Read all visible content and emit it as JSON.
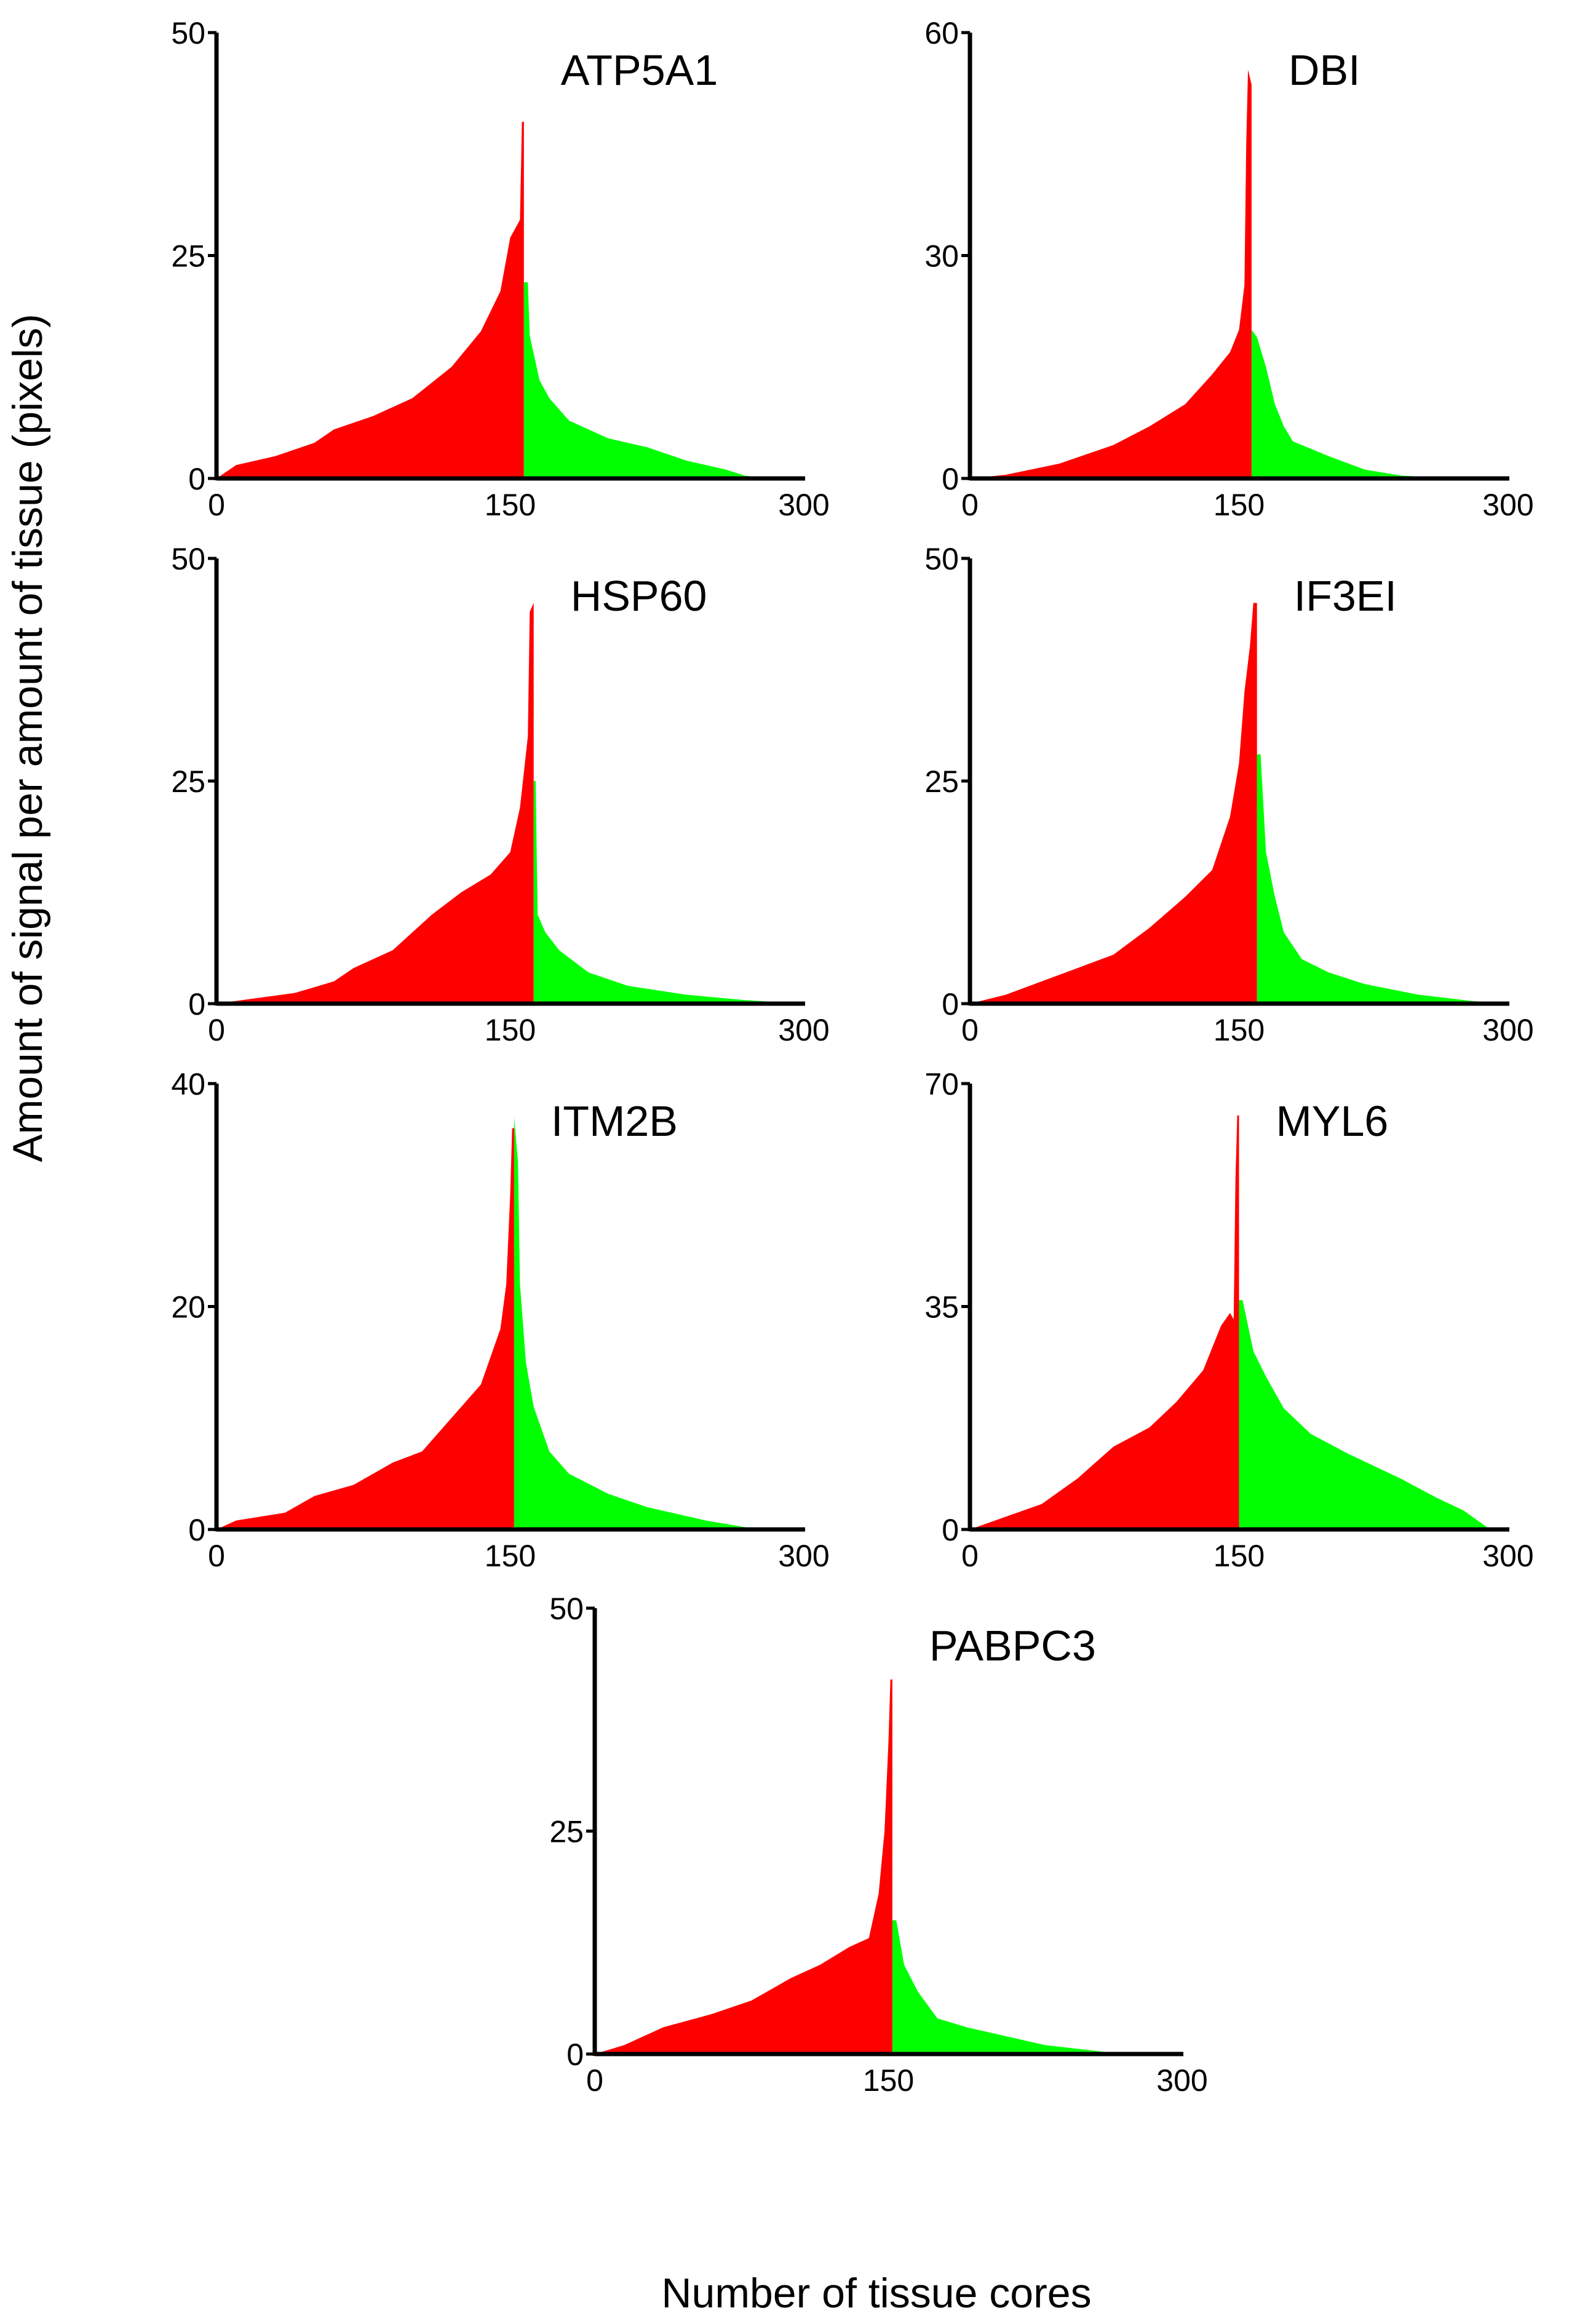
{
  "figure": {
    "ylabel": "Amount of signal per amount of tissue (pixels)",
    "xlabel": "Number of tissue cores"
  },
  "colors": {
    "left": "#ff0000",
    "right": "#00ff00",
    "axis": "#000000"
  },
  "chart_data": [
    {
      "type": "area",
      "title": "ATP5A1",
      "xlim": [
        0,
        300
      ],
      "ylim": [
        0,
        50
      ],
      "xticks": [
        "0",
        "150",
        "300"
      ],
      "yticks": [
        "0",
        "25",
        "50"
      ],
      "split": 157,
      "left_series": [
        [
          0,
          0
        ],
        [
          10,
          1.5
        ],
        [
          30,
          2.5
        ],
        [
          50,
          4
        ],
        [
          60,
          5.5
        ],
        [
          80,
          7
        ],
        [
          100,
          9
        ],
        [
          120,
          12.5
        ],
        [
          135,
          16.5
        ],
        [
          145,
          21
        ],
        [
          150,
          27
        ],
        [
          155,
          29
        ],
        [
          156,
          40
        ],
        [
          157,
          40
        ]
      ],
      "right_series": [
        [
          157,
          22
        ],
        [
          159,
          22
        ],
        [
          160,
          16
        ],
        [
          165,
          11
        ],
        [
          170,
          9
        ],
        [
          180,
          6.5
        ],
        [
          200,
          4.5
        ],
        [
          220,
          3.5
        ],
        [
          240,
          2
        ],
        [
          260,
          1
        ],
        [
          270,
          0.3
        ],
        [
          285,
          0
        ]
      ]
    },
    {
      "type": "area",
      "title": "DBI",
      "xlim": [
        0,
        300
      ],
      "ylim": [
        0,
        60
      ],
      "xticks": [
        "0",
        "150",
        "300"
      ],
      "yticks": [
        "0",
        "30",
        "60"
      ],
      "split": 157,
      "left_series": [
        [
          0,
          0
        ],
        [
          20,
          0.5
        ],
        [
          50,
          2
        ],
        [
          80,
          4.5
        ],
        [
          100,
          7
        ],
        [
          120,
          10
        ],
        [
          135,
          14
        ],
        [
          145,
          17
        ],
        [
          150,
          20
        ],
        [
          153,
          26
        ],
        [
          154,
          45
        ],
        [
          155,
          55
        ],
        [
          157,
          53
        ]
      ],
      "right_series": [
        [
          157,
          20
        ],
        [
          160,
          19
        ],
        [
          165,
          15
        ],
        [
          170,
          10
        ],
        [
          175,
          7
        ],
        [
          180,
          5
        ],
        [
          200,
          3
        ],
        [
          220,
          1.2
        ],
        [
          240,
          0.4
        ],
        [
          260,
          0.1
        ],
        [
          275,
          0
        ]
      ]
    },
    {
      "type": "area",
      "title": "HSP60",
      "xlim": [
        0,
        300
      ],
      "ylim": [
        0,
        50
      ],
      "xticks": [
        "0",
        "150",
        "300"
      ],
      "yticks": [
        "0",
        "25",
        "50"
      ],
      "split": 162,
      "left_series": [
        [
          0,
          0
        ],
        [
          20,
          0.6
        ],
        [
          40,
          1.2
        ],
        [
          60,
          2.5
        ],
        [
          70,
          4
        ],
        [
          90,
          6
        ],
        [
          110,
          10
        ],
        [
          125,
          12.5
        ],
        [
          140,
          14.5
        ],
        [
          150,
          17
        ],
        [
          155,
          22
        ],
        [
          159,
          30
        ],
        [
          160,
          44
        ],
        [
          162,
          45
        ]
      ],
      "right_series": [
        [
          162,
          25
        ],
        [
          163,
          25
        ],
        [
          164,
          10
        ],
        [
          168,
          8
        ],
        [
          175,
          6
        ],
        [
          190,
          3.5
        ],
        [
          210,
          2
        ],
        [
          240,
          1
        ],
        [
          270,
          0.4
        ],
        [
          300,
          0
        ]
      ]
    },
    {
      "type": "area",
      "title": "IF3EI",
      "xlim": [
        0,
        300
      ],
      "ylim": [
        0,
        50
      ],
      "xticks": [
        "0",
        "150",
        "300"
      ],
      "yticks": [
        "0",
        "25",
        "50"
      ],
      "split": 160,
      "left_series": [
        [
          0,
          0
        ],
        [
          20,
          1
        ],
        [
          40,
          2.5
        ],
        [
          60,
          4
        ],
        [
          80,
          5.5
        ],
        [
          100,
          8.5
        ],
        [
          120,
          12
        ],
        [
          135,
          15
        ],
        [
          145,
          21
        ],
        [
          150,
          27
        ],
        [
          153,
          35
        ],
        [
          156,
          40
        ],
        [
          158,
          45
        ],
        [
          160,
          45
        ]
      ],
      "right_series": [
        [
          160,
          28
        ],
        [
          162,
          28
        ],
        [
          165,
          17
        ],
        [
          170,
          12
        ],
        [
          175,
          8
        ],
        [
          185,
          5
        ],
        [
          200,
          3.5
        ],
        [
          220,
          2.2
        ],
        [
          250,
          1
        ],
        [
          280,
          0.3
        ],
        [
          300,
          0
        ]
      ]
    },
    {
      "type": "area",
      "title": "ITM2B",
      "xlim": [
        0,
        300
      ],
      "ylim": [
        0,
        40
      ],
      "xticks": [
        "0",
        "150",
        "300"
      ],
      "yticks": [
        "0",
        "20",
        "40"
      ],
      "split": 152,
      "left_series": [
        [
          0,
          0
        ],
        [
          10,
          0.8
        ],
        [
          35,
          1.5
        ],
        [
          50,
          3
        ],
        [
          70,
          4
        ],
        [
          90,
          6
        ],
        [
          105,
          7
        ],
        [
          120,
          10
        ],
        [
          135,
          13
        ],
        [
          145,
          18
        ],
        [
          148,
          22
        ],
        [
          150,
          30
        ],
        [
          151,
          36
        ],
        [
          152,
          36
        ]
      ],
      "right_series": [
        [
          152,
          37
        ],
        [
          154,
          33
        ],
        [
          155,
          22
        ],
        [
          158,
          15
        ],
        [
          162,
          11
        ],
        [
          170,
          7
        ],
        [
          180,
          5
        ],
        [
          200,
          3.2
        ],
        [
          220,
          2
        ],
        [
          250,
          0.8
        ],
        [
          270,
          0.2
        ],
        [
          285,
          0
        ]
      ]
    },
    {
      "type": "area",
      "title": "MYL6",
      "xlim": [
        0,
        300
      ],
      "ylim": [
        0,
        70
      ],
      "xticks": [
        "0",
        "150",
        "300"
      ],
      "yticks": [
        "0",
        "35",
        "70"
      ],
      "split": 150,
      "left_series": [
        [
          0,
          0
        ],
        [
          20,
          2
        ],
        [
          40,
          4
        ],
        [
          60,
          8
        ],
        [
          80,
          13
        ],
        [
          100,
          16
        ],
        [
          115,
          20
        ],
        [
          130,
          25
        ],
        [
          140,
          32
        ],
        [
          145,
          34
        ],
        [
          147,
          33
        ],
        [
          148,
          55
        ],
        [
          149,
          65
        ],
        [
          150,
          65
        ]
      ],
      "right_series": [
        [
          150,
          36
        ],
        [
          152,
          36
        ],
        [
          158,
          28
        ],
        [
          165,
          24
        ],
        [
          175,
          19
        ],
        [
          190,
          15
        ],
        [
          210,
          12
        ],
        [
          240,
          8
        ],
        [
          260,
          5
        ],
        [
          275,
          3
        ],
        [
          290,
          0
        ]
      ]
    },
    {
      "type": "area",
      "title": "PABPC3",
      "xlim": [
        0,
        300
      ],
      "ylim": [
        0,
        50
      ],
      "xticks": [
        "0",
        "150",
        "300"
      ],
      "yticks": [
        "0",
        "25",
        "50"
      ],
      "split": 152,
      "left_series": [
        [
          0,
          0
        ],
        [
          15,
          1
        ],
        [
          35,
          3
        ],
        [
          60,
          4.5
        ],
        [
          80,
          6
        ],
        [
          100,
          8.5
        ],
        [
          115,
          10
        ],
        [
          130,
          12
        ],
        [
          140,
          13
        ],
        [
          145,
          18
        ],
        [
          148,
          25
        ],
        [
          150,
          35
        ],
        [
          151,
          42
        ],
        [
          152,
          42
        ]
      ],
      "right_series": [
        [
          152,
          15
        ],
        [
          154,
          15
        ],
        [
          158,
          10
        ],
        [
          165,
          7
        ],
        [
          175,
          4
        ],
        [
          190,
          3
        ],
        [
          210,
          2
        ],
        [
          230,
          1
        ],
        [
          250,
          0.5
        ],
        [
          270,
          0
        ]
      ]
    }
  ]
}
